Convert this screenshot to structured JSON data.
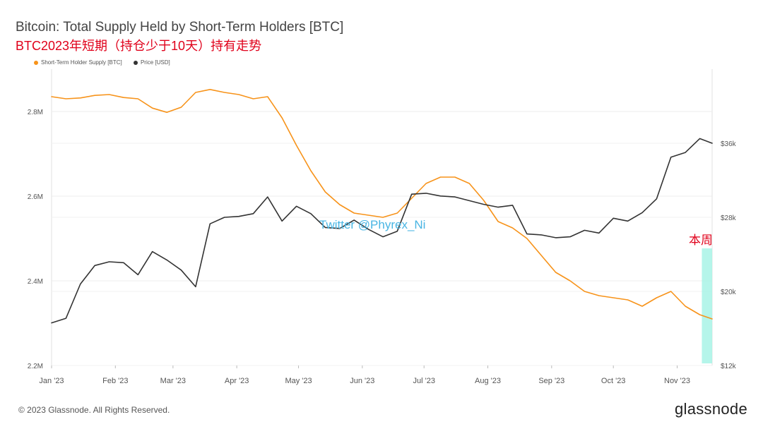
{
  "title": "Bitcoin: Total Supply Held by Short-Term Holders [BTC]",
  "subtitle": "BTC2023年短期（持仓少于10天）持有走势",
  "footer": {
    "copyright": "© 2023 Glassnode. All Rights Reserved.",
    "logo": "glassnode"
  },
  "annotations": {
    "week_label": "本周",
    "watermark": "Twitter @Phyrex_Ni"
  },
  "colors": {
    "supply": "#f7931a",
    "price": "#333333",
    "highlight": "#a8f3e6",
    "annotation": "#e0001a"
  },
  "chart_data": {
    "type": "line",
    "title": "Bitcoin: Total Supply Held by Short-Term Holders [BTC]",
    "x_ticks": [
      "Jan '23",
      "Feb '23",
      "Mar '23",
      "Apr '23",
      "May '23",
      "Jun '23",
      "Jul '23",
      "Aug '23",
      "Sep '23",
      "Oct '23",
      "Nov '23"
    ],
    "x_range": [
      "2023-01-01",
      "2023-11-18"
    ],
    "y_left": {
      "ticks": [
        "2.2M",
        "2.4M",
        "2.6M",
        "2.8M"
      ],
      "tick_values": [
        2200000,
        2400000,
        2600000,
        2800000
      ],
      "range": [
        2200000,
        2900000
      ]
    },
    "y_right": {
      "ticks": [
        "$12k",
        "$20k",
        "$28k",
        "$36k"
      ],
      "tick_values": [
        12000,
        20000,
        28000,
        36000
      ],
      "range": [
        12000,
        44000
      ]
    },
    "grid": true,
    "legend": "top-left",
    "highlight_band": {
      "start": "2023-11-13",
      "end": "2023-11-18",
      "label": "本周"
    },
    "series": [
      {
        "name": "Short-Term Holder Supply [BTC]",
        "axis": "left",
        "color": "#f7931a",
        "x": [
          "2023-01-01",
          "2023-01-08",
          "2023-01-15",
          "2023-01-22",
          "2023-01-29",
          "2023-02-05",
          "2023-02-12",
          "2023-02-19",
          "2023-02-26",
          "2023-03-05",
          "2023-03-12",
          "2023-03-19",
          "2023-03-26",
          "2023-04-02",
          "2023-04-09",
          "2023-04-16",
          "2023-04-23",
          "2023-04-30",
          "2023-05-07",
          "2023-05-14",
          "2023-05-21",
          "2023-05-28",
          "2023-06-04",
          "2023-06-11",
          "2023-06-18",
          "2023-06-25",
          "2023-07-02",
          "2023-07-09",
          "2023-07-16",
          "2023-07-23",
          "2023-07-30",
          "2023-08-06",
          "2023-08-13",
          "2023-08-20",
          "2023-08-27",
          "2023-09-03",
          "2023-09-10",
          "2023-09-17",
          "2023-09-24",
          "2023-10-01",
          "2023-10-08",
          "2023-10-15",
          "2023-10-22",
          "2023-10-29",
          "2023-11-05",
          "2023-11-12",
          "2023-11-18"
        ],
        "values": [
          2835000,
          2830000,
          2832000,
          2838000,
          2840000,
          2833000,
          2830000,
          2808000,
          2798000,
          2810000,
          2845000,
          2852000,
          2845000,
          2840000,
          2830000,
          2835000,
          2785000,
          2720000,
          2660000,
          2610000,
          2580000,
          2560000,
          2555000,
          2550000,
          2560000,
          2595000,
          2630000,
          2645000,
          2645000,
          2630000,
          2590000,
          2540000,
          2525000,
          2500000,
          2460000,
          2420000,
          2400000,
          2375000,
          2365000,
          2360000,
          2355000,
          2340000,
          2360000,
          2375000,
          2340000,
          2320000,
          2310000
        ]
      },
      {
        "name": "Price [USD]",
        "axis": "right",
        "color": "#333333",
        "x": [
          "2023-01-01",
          "2023-01-08",
          "2023-01-15",
          "2023-01-22",
          "2023-01-29",
          "2023-02-05",
          "2023-02-12",
          "2023-02-19",
          "2023-02-26",
          "2023-03-05",
          "2023-03-12",
          "2023-03-19",
          "2023-03-26",
          "2023-04-02",
          "2023-04-09",
          "2023-04-16",
          "2023-04-23",
          "2023-04-30",
          "2023-05-07",
          "2023-05-14",
          "2023-05-21",
          "2023-05-28",
          "2023-06-04",
          "2023-06-11",
          "2023-06-18",
          "2023-06-25",
          "2023-07-02",
          "2023-07-09",
          "2023-07-16",
          "2023-07-23",
          "2023-07-30",
          "2023-08-06",
          "2023-08-13",
          "2023-08-20",
          "2023-08-27",
          "2023-09-03",
          "2023-09-10",
          "2023-09-17",
          "2023-09-24",
          "2023-10-01",
          "2023-10-08",
          "2023-10-15",
          "2023-10-22",
          "2023-10-29",
          "2023-11-05",
          "2023-11-12",
          "2023-11-18"
        ],
        "values": [
          16600,
          17100,
          20800,
          22800,
          23200,
          23100,
          21800,
          24300,
          23400,
          22300,
          20500,
          27300,
          28000,
          28100,
          28400,
          30200,
          27600,
          29200,
          28400,
          26900,
          26800,
          27700,
          26700,
          25900,
          26500,
          30500,
          30600,
          30300,
          30200,
          29800,
          29400,
          29100,
          29300,
          26200,
          26100,
          25800,
          25900,
          26600,
          26300,
          27900,
          27600,
          28500,
          30000,
          34500,
          35000,
          36500,
          36000
        ]
      }
    ]
  }
}
